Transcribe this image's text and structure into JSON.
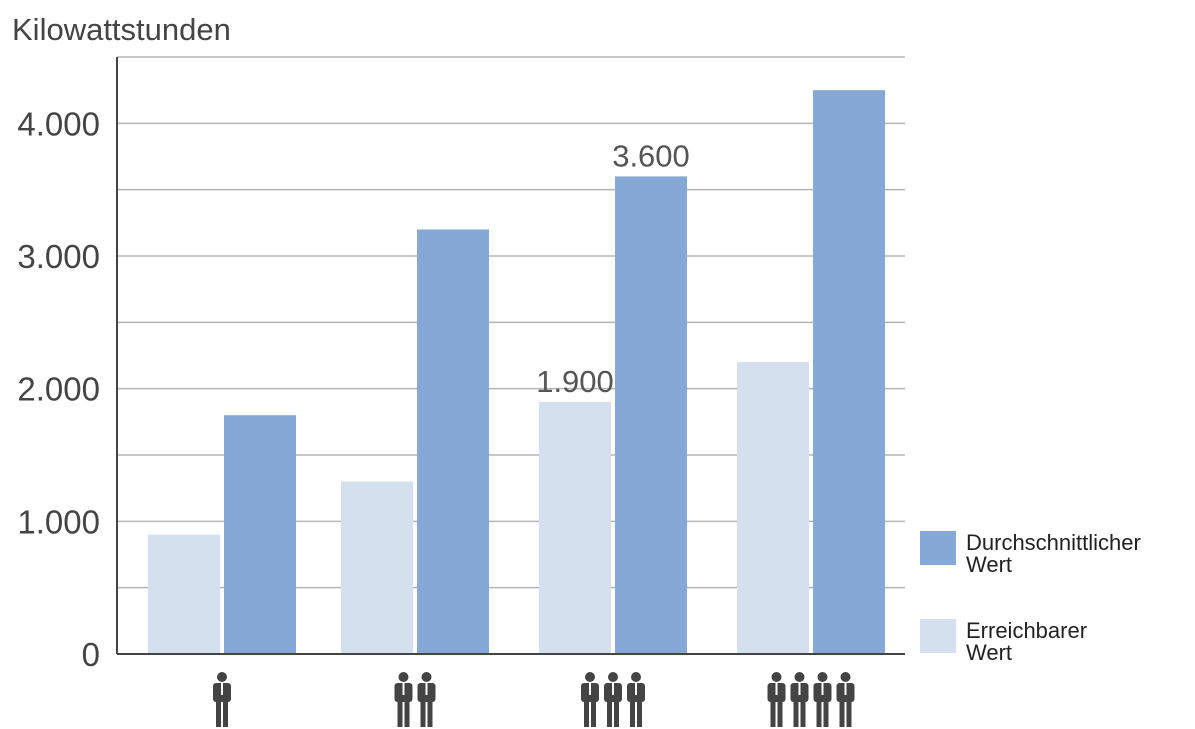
{
  "chart_data": {
    "type": "bar",
    "ylabel": "Kilowattstunden",
    "ylim": [
      0,
      4500
    ],
    "y_ticks": [
      {
        "value": 0,
        "label": "0"
      },
      {
        "value": 1000,
        "label": "1.000"
      },
      {
        "value": 2000,
        "label": "2.000"
      },
      {
        "value": 3000,
        "label": "3.000"
      },
      {
        "value": 4000,
        "label": "4.000"
      }
    ],
    "minor_grid_step": 500,
    "categories": [
      {
        "persons": 1,
        "icon": "person-icon"
      },
      {
        "persons": 2,
        "icon": "person-icon"
      },
      {
        "persons": 3,
        "icon": "person-icon"
      },
      {
        "persons": 4,
        "icon": "person-icon"
      }
    ],
    "series": [
      {
        "name": "Erreichbarer Wert",
        "name_lines": [
          "Erreichbarer",
          "Wert"
        ],
        "color": "#d5e0ee",
        "values": [
          900,
          1300,
          1900,
          2200
        ],
        "data_labels": [
          null,
          null,
          "1.900",
          null
        ]
      },
      {
        "name": "Durchschnittlicher Wert",
        "name_lines": [
          "Durchschnittlicher",
          "Wert"
        ],
        "color": "#86a8d4",
        "values": [
          1800,
          3200,
          3600,
          4250
        ],
        "data_labels": [
          null,
          null,
          "3.600",
          null
        ]
      }
    ],
    "grid": true,
    "legend_position": "bottom-right",
    "axis_color": "#444444",
    "grid_color": "#b5b5b5",
    "icon_color": "#444444"
  }
}
